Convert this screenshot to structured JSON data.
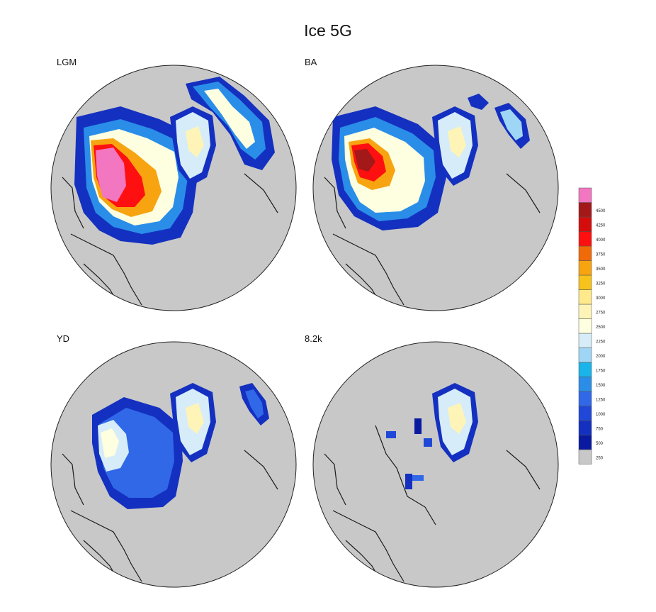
{
  "title": "Ice 5G",
  "panels": [
    {
      "label": "LGM"
    },
    {
      "label": "BA"
    },
    {
      "label": "YD"
    },
    {
      "label": "8.2k"
    }
  ],
  "colorbar": {
    "levels": [
      "250",
      "500",
      "750",
      "1000",
      "1250",
      "1500",
      "1750",
      "2000",
      "2250",
      "2500",
      "2750",
      "3000",
      "3250",
      "3500",
      "3750",
      "4000",
      "4250",
      "4500"
    ],
    "colors": [
      "#c8c8c8",
      "#0a1aa0",
      "#1430c0",
      "#2048d8",
      "#3068e8",
      "#2a8ee8",
      "#19b4ea",
      "#9fd6f5",
      "#d6ecf8",
      "#fefee0",
      "#fff4b8",
      "#ffe98a",
      "#f7c21a",
      "#f7a410",
      "#f06a08",
      "#ff1010",
      "#d40c0c",
      "#a31818",
      "#f276c0"
    ]
  },
  "map_colors": {
    "ocean": "#c8c8c8",
    "coastline": "#1a1a1a"
  }
}
